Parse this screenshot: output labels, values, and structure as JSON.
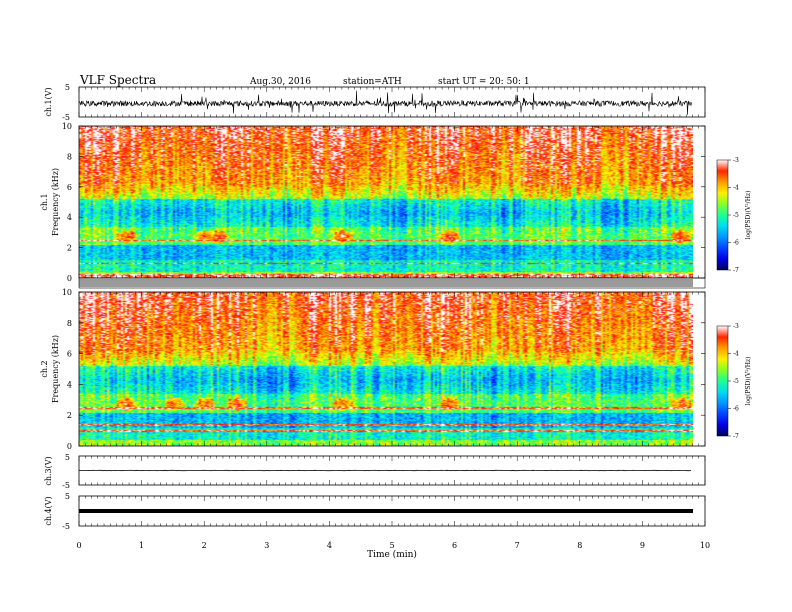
{
  "header": {
    "title": "VLF  Spectra",
    "date": "Aug.30, 2016",
    "station": "station=ATH",
    "start": "start  UT  =   20: 50: 1"
  },
  "chart_data": [
    {
      "type": "line",
      "panel": "ch1-waveform",
      "ylabel": "ch.1(V)",
      "ylim": [
        -5,
        5
      ],
      "yticks": [
        "5",
        "-5"
      ],
      "description_level": -0.5
    },
    {
      "type": "heatmap",
      "panel": "ch1-spectrogram",
      "ylabel_top": "ch.1",
      "ylabel": "Frequency  (kHz)",
      "xlim": [
        0,
        10
      ],
      "ylim": [
        0,
        10
      ],
      "yticks": [
        "0",
        "2",
        "4",
        "6",
        "8",
        "10"
      ],
      "data_end_min": 9.8,
      "colorbar": {
        "label": "log(PSD)(V²/Hz)",
        "ticks": [
          "-3",
          "-4",
          "-5",
          "-6",
          "-7"
        ],
        "range": [
          -7,
          -3
        ]
      }
    },
    {
      "type": "heatmap",
      "panel": "ch2-spectrogram",
      "ylabel_top": "ch.2",
      "ylabel": "Frequency  (kHz)",
      "xlim": [
        0,
        10
      ],
      "ylim": [
        0,
        10
      ],
      "yticks": [
        "0",
        "2",
        "4",
        "6",
        "8",
        "10"
      ],
      "data_end_min": 9.8,
      "colorbar": {
        "label": "log(PSD)(V²/Hz)",
        "ticks": [
          "-3",
          "-4",
          "-5",
          "-6",
          "-7"
        ],
        "range": [
          -7,
          -3
        ]
      }
    },
    {
      "type": "line",
      "panel": "ch3-waveform",
      "ylabel": "ch.3(V)",
      "ylim": [
        -5,
        5
      ],
      "yticks": [
        "5",
        "-5"
      ]
    },
    {
      "type": "line",
      "panel": "ch4-waveform",
      "ylabel": "ch.4(V)",
      "ylim": [
        -5,
        5
      ],
      "yticks": [
        "5",
        "-5"
      ]
    }
  ],
  "xaxis": {
    "label": "Time  (min)",
    "ticks": [
      "0",
      "1",
      "2",
      "3",
      "4",
      "5",
      "6",
      "7",
      "8",
      "9",
      "10"
    ],
    "range": [
      0,
      10
    ]
  },
  "colors": {
    "frame": "#000000",
    "separator": "#9a9a9a"
  }
}
